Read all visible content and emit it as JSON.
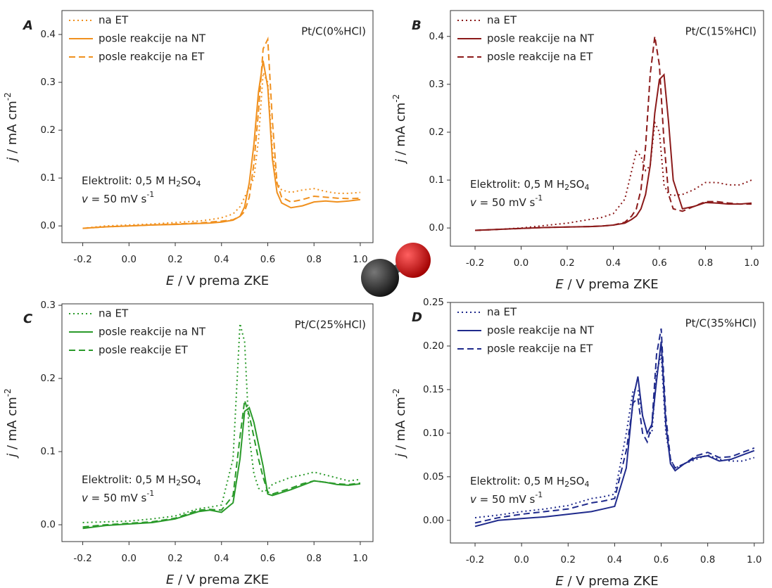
{
  "chart_data": [
    {
      "type": "line",
      "panel": "A",
      "title": "Pt/C(0%HCl)",
      "x_label": [
        "E",
        " / V prema ZKE"
      ],
      "y_label": [
        "j",
        " / mA cm",
        "-2"
      ],
      "annotation": [
        [
          "Elektrolit: 0,5 M H",
          "2",
          "SO",
          "4"
        ],
        [
          "v",
          " = 50 mV s",
          "-1"
        ]
      ],
      "x": [
        -0.2,
        -0.1,
        0,
        0.1,
        0.2,
        0.3,
        0.35,
        0.4,
        0.45,
        0.48,
        0.5,
        0.52,
        0.54,
        0.56,
        0.58,
        0.6,
        0.62,
        0.64,
        0.66,
        0.7,
        0.75,
        0.8,
        0.85,
        0.9,
        0.95,
        1.0
      ],
      "series": [
        {
          "name": "na ET",
          "color": "#f0901e",
          "dash": "dotted",
          "values": [
            -0.005,
            0,
            0.002,
            0.004,
            0.007,
            0.01,
            0.013,
            0.017,
            0.025,
            0.04,
            0.06,
            0.08,
            0.1,
            0.18,
            0.32,
            0.3,
            0.16,
            0.09,
            0.075,
            0.07,
            0.075,
            0.078,
            0.072,
            0.068,
            0.068,
            0.07
          ]
        },
        {
          "name": "posle reakcije na NT",
          "color": "#f0901e",
          "dash": "solid",
          "values": [
            -0.005,
            -0.002,
            0,
            0.002,
            0.003,
            0.005,
            0.006,
            0.008,
            0.012,
            0.02,
            0.04,
            0.09,
            0.17,
            0.28,
            0.345,
            0.29,
            0.14,
            0.07,
            0.048,
            0.038,
            0.042,
            0.05,
            0.052,
            0.05,
            0.052,
            0.055
          ]
        },
        {
          "name": "posle reakcije na ET",
          "color": "#f0901e",
          "dash": "dashed",
          "values": [
            -0.005,
            -0.002,
            0,
            0.002,
            0.004,
            0.006,
            0.008,
            0.01,
            0.013,
            0.02,
            0.03,
            0.06,
            0.13,
            0.24,
            0.37,
            0.39,
            0.22,
            0.09,
            0.06,
            0.05,
            0.055,
            0.062,
            0.06,
            0.058,
            0.057,
            0.058
          ]
        }
      ],
      "xlim": [
        -0.29,
        1.055
      ],
      "ylim": [
        -0.035,
        0.45
      ],
      "xticks": [
        -0.2,
        {
          "value": 0,
          "label": "0.0"
        },
        0.2,
        0.4,
        0.6,
        0.8,
        {
          "value": 1,
          "label": "1.0"
        }
      ],
      "yticks": [
        {
          "value": 0,
          "label": "0.0"
        },
        0.1,
        0.2,
        0.3,
        0.4
      ]
    },
    {
      "type": "line",
      "panel": "B",
      "title": "Pt/C(15%HCl)",
      "x_label": [
        "E",
        " / V prema ZKE"
      ],
      "y_label": [
        "j",
        " / mA cm",
        "-2"
      ],
      "annotation": [
        [
          "Elektrolit: 0,5 M H",
          "2",
          "SO",
          "4"
        ],
        [
          "v",
          " = 50 mV s",
          "-1"
        ]
      ],
      "x": [
        -0.2,
        -0.1,
        0,
        0.1,
        0.2,
        0.3,
        0.35,
        0.4,
        0.45,
        0.48,
        0.5,
        0.52,
        0.54,
        0.56,
        0.58,
        0.6,
        0.62,
        0.64,
        0.66,
        0.7,
        0.75,
        0.8,
        0.85,
        0.9,
        0.95,
        1.0
      ],
      "series": [
        {
          "name": "na ET",
          "color": "#8b1a1a",
          "dash": "dotted",
          "values": [
            -0.005,
            -0.003,
            0,
            0.005,
            0.01,
            0.018,
            0.022,
            0.03,
            0.06,
            0.12,
            0.16,
            0.15,
            0.12,
            0.13,
            0.22,
            0.2,
            0.09,
            0.07,
            0.068,
            0.07,
            0.08,
            0.095,
            0.095,
            0.09,
            0.09,
            0.1
          ]
        },
        {
          "name": "posle reakcije na NT",
          "color": "#8b1a1a",
          "dash": "solid",
          "values": [
            -0.005,
            -0.003,
            -0.001,
            0.001,
            0.002,
            0.003,
            0.004,
            0.006,
            0.01,
            0.018,
            0.025,
            0.04,
            0.07,
            0.13,
            0.24,
            0.31,
            0.32,
            0.22,
            0.1,
            0.04,
            0.045,
            0.053,
            0.052,
            0.05,
            0.05,
            0.052
          ]
        },
        {
          "name": "posle reakcije na ET",
          "color": "#8b1a1a",
          "dash": "dashed",
          "values": [
            -0.005,
            -0.003,
            -0.001,
            0.001,
            0.002,
            0.003,
            0.004,
            0.006,
            0.012,
            0.025,
            0.04,
            0.08,
            0.17,
            0.32,
            0.4,
            0.34,
            0.18,
            0.07,
            0.04,
            0.035,
            0.045,
            0.055,
            0.055,
            0.052,
            0.05,
            0.05
          ]
        }
      ],
      "xlim": [
        -0.307,
        1.052
      ],
      "ylim": [
        -0.038,
        0.454
      ],
      "xticks": [
        -0.2,
        {
          "value": 0,
          "label": "0.0"
        },
        0.2,
        0.4,
        0.6,
        0.8,
        {
          "value": 1,
          "label": "1.0"
        }
      ],
      "yticks": [
        {
          "value": 0,
          "label": "0.0"
        },
        0.1,
        0.2,
        0.3,
        0.4
      ]
    },
    {
      "type": "line",
      "panel": "C",
      "title": "Pt/C(25%HCl)",
      "x_label": [
        "E",
        " / V prema ZKE"
      ],
      "y_label": [
        "j",
        " / mA cm",
        "-2"
      ],
      "annotation": [
        [
          "Elektrolit: 0,5 M H",
          "2",
          "SO",
          "4"
        ],
        [
          "v",
          " = 50 mV s",
          "-1"
        ]
      ],
      "x": [
        -0.2,
        -0.1,
        0,
        0.1,
        0.2,
        0.3,
        0.35,
        0.4,
        0.45,
        0.48,
        0.5,
        0.52,
        0.54,
        0.56,
        0.58,
        0.6,
        0.62,
        0.64,
        0.66,
        0.7,
        0.75,
        0.8,
        0.85,
        0.9,
        0.95,
        1.0
      ],
      "series": [
        {
          "name": "na ET",
          "color": "#2a9a2a",
          "dash": "dotted",
          "values": [
            0.003,
            0.004,
            0.005,
            0.008,
            0.012,
            0.022,
            0.024,
            0.027,
            0.09,
            0.275,
            0.25,
            0.12,
            0.07,
            0.05,
            0.045,
            0.048,
            0.055,
            0.058,
            0.06,
            0.065,
            0.068,
            0.072,
            0.068,
            0.064,
            0.06,
            0.062
          ]
        },
        {
          "name": "posle reakcije na NT",
          "color": "#2a9a2a",
          "dash": "solid",
          "values": [
            -0.005,
            -0.001,
            0.001,
            0.003,
            0.008,
            0.018,
            0.02,
            0.017,
            0.03,
            0.09,
            0.155,
            0.16,
            0.14,
            0.11,
            0.08,
            0.042,
            0.04,
            0.042,
            0.044,
            0.048,
            0.054,
            0.06,
            0.058,
            0.055,
            0.054,
            0.056
          ]
        },
        {
          "name": "posle reakcije ET",
          "color": "#2a9a2a",
          "dash": "dashed",
          "values": [
            -0.003,
            0,
            0.002,
            0.004,
            0.009,
            0.02,
            0.021,
            0.02,
            0.04,
            0.12,
            0.17,
            0.15,
            0.12,
            0.09,
            0.065,
            0.045,
            0.042,
            0.044,
            0.046,
            0.05,
            0.056,
            0.06,
            0.058,
            0.056,
            0.055,
            0.057
          ]
        }
      ],
      "xlim": [
        -0.29,
        1.055
      ],
      "ylim": [
        -0.023,
        0.302
      ],
      "xticks": [
        -0.2,
        {
          "value": 0,
          "label": "0.0"
        },
        0.2,
        0.4,
        0.6,
        0.8,
        {
          "value": 1,
          "label": "1.0"
        }
      ],
      "yticks": [
        {
          "value": 0,
          "label": "0.0"
        },
        0.1,
        0.2,
        0.3
      ]
    },
    {
      "type": "line",
      "panel": "D",
      "title": "Pt/C(35%HCl)",
      "x_label": [
        "E",
        " / V prema ZKE"
      ],
      "y_label": [
        "j",
        " / mA cm",
        "-2"
      ],
      "annotation": [
        [
          "Elektrolit: 0,5 M H",
          "2",
          "SO",
          "4"
        ],
        [
          "v",
          " = 50 mV s",
          "-1"
        ]
      ],
      "x": [
        -0.2,
        -0.1,
        0,
        0.1,
        0.2,
        0.3,
        0.35,
        0.4,
        0.45,
        0.48,
        0.5,
        0.52,
        0.54,
        0.56,
        0.58,
        0.6,
        0.62,
        0.64,
        0.66,
        0.7,
        0.75,
        0.8,
        0.85,
        0.9,
        0.95,
        1.0
      ],
      "series": [
        {
          "name": "na ET",
          "color": "#1f2a8c",
          "dash": "dotted",
          "values": [
            0.003,
            0.006,
            0.01,
            0.013,
            0.017,
            0.025,
            0.027,
            0.03,
            0.1,
            0.15,
            0.15,
            0.12,
            0.1,
            0.1,
            0.17,
            0.19,
            0.1,
            0.07,
            0.06,
            0.065,
            0.07,
            0.075,
            0.07,
            0.068,
            0.068,
            0.072
          ]
        },
        {
          "name": "posle reakcije na NT",
          "color": "#1f2a8c",
          "dash": "solid",
          "values": [
            -0.007,
            0,
            0.002,
            0.004,
            0.007,
            0.01,
            0.013,
            0.016,
            0.06,
            0.14,
            0.165,
            0.12,
            0.1,
            0.11,
            0.16,
            0.205,
            0.11,
            0.065,
            0.057,
            0.065,
            0.072,
            0.074,
            0.068,
            0.07,
            0.075,
            0.08
          ]
        },
        {
          "name": "posle reakcije na ET",
          "color": "#1f2a8c",
          "dash": "dashed",
          "values": [
            -0.003,
            0.003,
            0.007,
            0.01,
            0.013,
            0.02,
            0.022,
            0.025,
            0.08,
            0.135,
            0.14,
            0.1,
            0.09,
            0.11,
            0.19,
            0.22,
            0.12,
            0.07,
            0.06,
            0.065,
            0.074,
            0.078,
            0.072,
            0.073,
            0.078,
            0.083
          ]
        }
      ],
      "xlim": [
        -0.306,
        1.04
      ],
      "ylim": [
        -0.026,
        0.25
      ],
      "xticks": [
        -0.2,
        {
          "value": 0,
          "label": "0.0"
        },
        0.2,
        0.4,
        0.6,
        0.8,
        {
          "value": 1,
          "label": "1.0"
        }
      ],
      "yticks": [
        {
          "value": 0,
          "label": "0.00"
        },
        0.05,
        {
          "value": 0.1,
          "label": "0.10"
        },
        0.15,
        {
          "value": 0.2,
          "label": "0.20"
        },
        0.25
      ]
    }
  ]
}
